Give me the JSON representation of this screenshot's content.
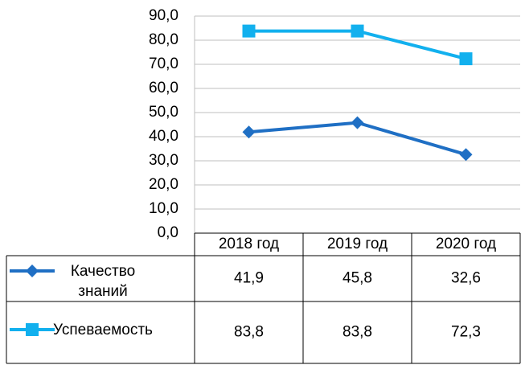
{
  "chart_data": {
    "type": "line",
    "categories": [
      "2018 год",
      "2019 год",
      "2020 год"
    ],
    "series": [
      {
        "name": "Качество знаний",
        "color": "#1f6fc4",
        "marker": "diamond",
        "values": [
          41.9,
          45.8,
          32.6
        ],
        "value_labels": [
          "41,9",
          "45,8",
          "32,6"
        ]
      },
      {
        "name": "Успеваемость",
        "color": "#12b0ee",
        "marker": "square",
        "values": [
          83.8,
          83.8,
          72.3
        ],
        "value_labels": [
          "83,8",
          "83,8",
          "72,3"
        ]
      }
    ],
    "ylim": [
      0,
      90
    ],
    "yticks": [
      {
        "value": 0,
        "label": "0,0"
      },
      {
        "value": 10,
        "label": "10,0"
      },
      {
        "value": 20,
        "label": "20,0"
      },
      {
        "value": 30,
        "label": "30,0"
      },
      {
        "value": 40,
        "label": "40,0"
      },
      {
        "value": 50,
        "label": "50,0"
      },
      {
        "value": 60,
        "label": "60,0"
      },
      {
        "value": 70,
        "label": "70,0"
      },
      {
        "value": 80,
        "label": "80,0"
      },
      {
        "value": 90,
        "label": "90,0"
      }
    ],
    "grid": true
  }
}
